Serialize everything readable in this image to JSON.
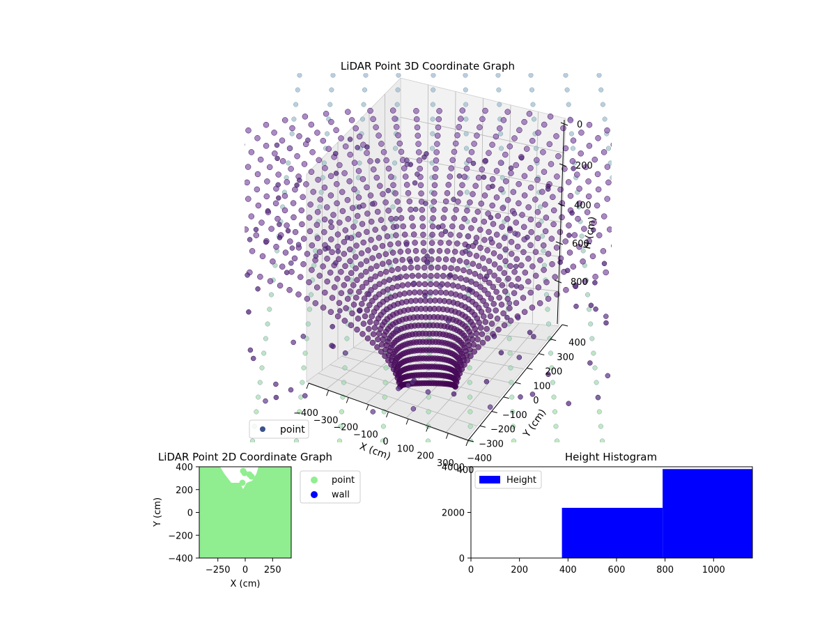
{
  "chart_data": [
    {
      "type": "scatter",
      "title": "LiDAR Point 3D Coordinate Graph",
      "xlabel": "X (cm)",
      "ylabel": "Y (cm)",
      "zlabel": "H (cm)",
      "xticks": [
        "−400",
        "−300",
        "−200",
        "−100",
        "0",
        "100",
        "200",
        "300",
        "400"
      ],
      "yticks": [
        "−400",
        "−300",
        "−200",
        "−100",
        "0",
        "100",
        "200",
        "300",
        "400"
      ],
      "zticks": [
        "0",
        "200",
        "400",
        "600",
        "800"
      ],
      "xlim": [
        -400,
        400
      ],
      "ylim": [
        -400,
        400
      ],
      "zlim": [
        0,
        1000
      ],
      "legend": [
        {
          "name": "point",
          "color": "#3b528b"
        }
      ],
      "grid": true,
      "colormap": "viridis",
      "series": [
        {
          "name": "point",
          "description_shape": "radial bowl of scan lines",
          "color_low": "#440154",
          "color_high": "#7e57a5"
        },
        {
          "name": "wall-columns",
          "color_low": "#a7e3a0",
          "color_high": "#9fb8cf"
        }
      ]
    },
    {
      "type": "scatter",
      "title": "LiDAR Point 2D Coordinate Graph",
      "xlabel": "X (cm)",
      "ylabel": "Y (cm)",
      "xticks": [
        "−250",
        "0",
        "250"
      ],
      "xtick_values": [
        -250,
        0,
        250
      ],
      "yticks": [
        "−400",
        "−200",
        "0",
        "200",
        "400"
      ],
      "ytick_values": [
        -400,
        -200,
        0,
        200,
        400
      ],
      "xlim": [
        -420,
        420
      ],
      "ylim": [
        -400,
        400
      ],
      "legend": [
        {
          "name": "point",
          "color": "#90ee90"
        },
        {
          "name": "wall",
          "color": "#0000ff"
        }
      ],
      "grid": false
    },
    {
      "type": "bar",
      "title": "Height Histogram",
      "xticks": [
        "0",
        "200",
        "400",
        "600",
        "800",
        "1000"
      ],
      "xtick_values": [
        0,
        200,
        400,
        600,
        800,
        1000
      ],
      "yticks": [
        "0",
        "2000",
        "4000"
      ],
      "ytick_values": [
        0,
        2000,
        4000
      ],
      "xlim": [
        0,
        1160
      ],
      "ylim": [
        0,
        4000
      ],
      "bins": [
        {
          "start": 0,
          "end": 375,
          "count": 0
        },
        {
          "start": 375,
          "end": 790,
          "count": 2200
        },
        {
          "start": 790,
          "end": 1160,
          "count": 3900
        }
      ],
      "legend": [
        {
          "name": "Height",
          "color": "#0000ff"
        }
      ],
      "grid": false
    }
  ]
}
